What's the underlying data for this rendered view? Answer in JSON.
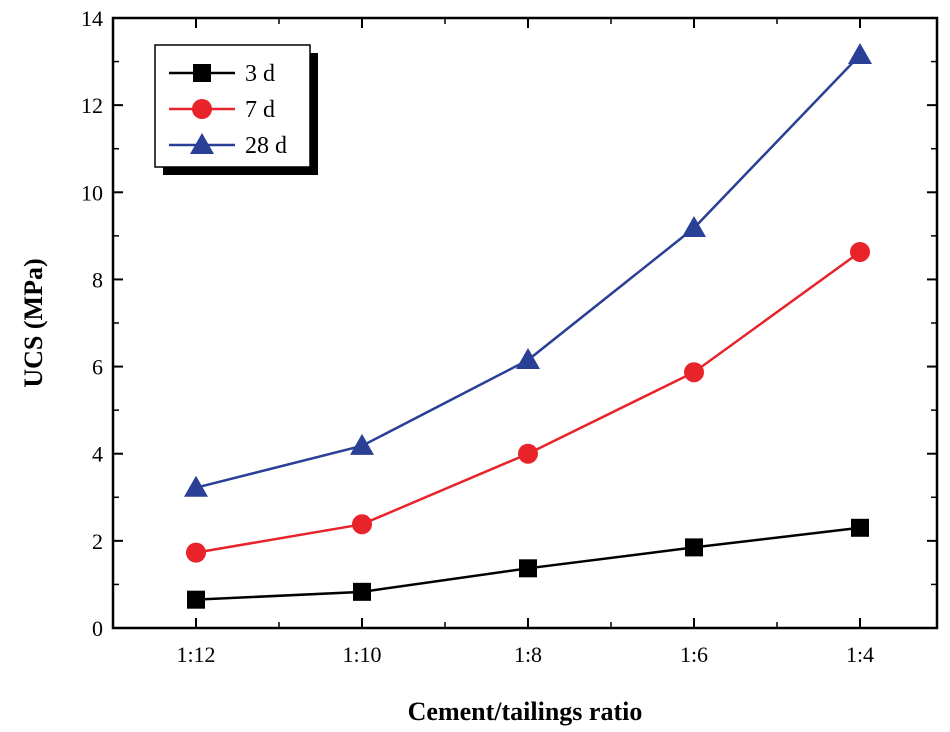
{
  "chart_data": {
    "type": "line",
    "categories": [
      "1:12",
      "1:10",
      "1:8",
      "1:6",
      "1:4"
    ],
    "series": [
      {
        "name": "3 d",
        "values": [
          0.65,
          0.83,
          1.37,
          1.85,
          2.3
        ],
        "color": "#000000",
        "marker": "square"
      },
      {
        "name": "7 d",
        "values": [
          1.73,
          2.38,
          4.0,
          5.87,
          8.63
        ],
        "color": "#e8232a",
        "marker": "circle"
      },
      {
        "name": "28 d",
        "values": [
          3.22,
          4.18,
          6.15,
          9.18,
          13.15
        ],
        "color": "#2a3f96",
        "marker": "triangle"
      }
    ],
    "xlabel": "Cement/tailings ratio",
    "ylabel": "UCS (MPa)",
    "ylim": [
      0,
      14
    ],
    "yticks": [
      0,
      2,
      4,
      6,
      8,
      10,
      12,
      14
    ],
    "legend_position": "top-left",
    "grid": false
  }
}
